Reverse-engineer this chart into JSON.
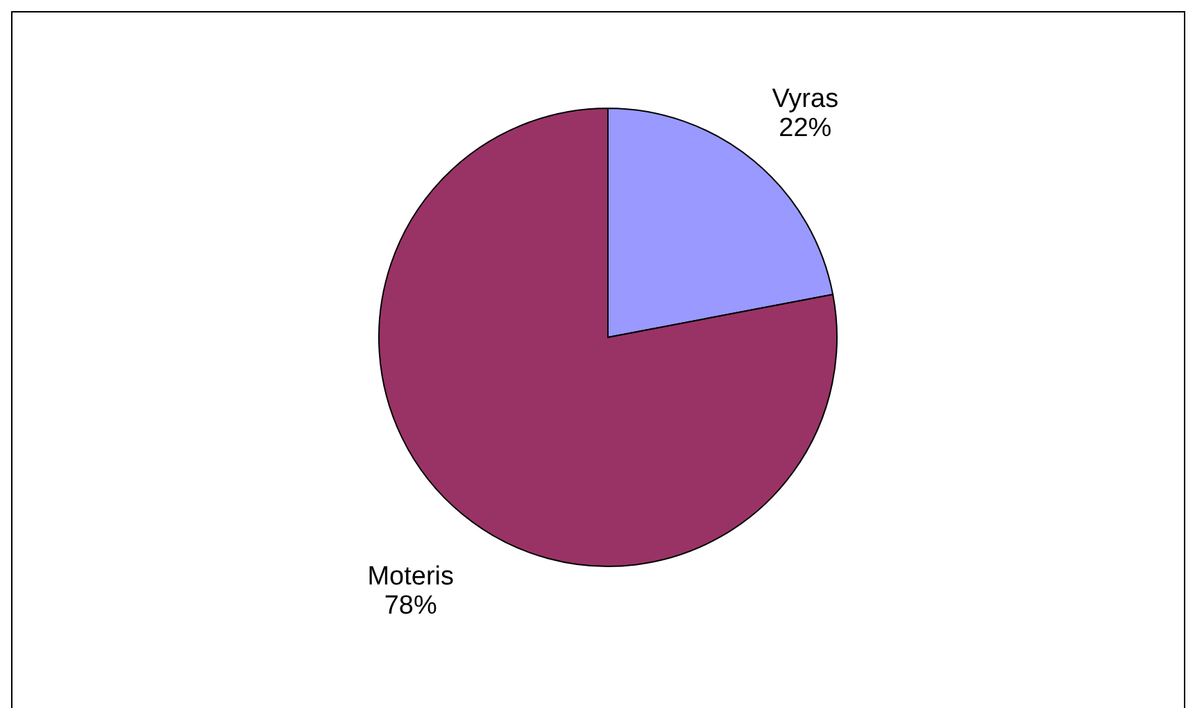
{
  "chart_data": {
    "type": "pie",
    "categories": [
      "Vyras",
      "Moteris"
    ],
    "values": [
      22,
      78
    ],
    "colors": [
      "#9999ff",
      "#993366"
    ],
    "value_labels": [
      "22%",
      "78%"
    ],
    "legend": false
  }
}
